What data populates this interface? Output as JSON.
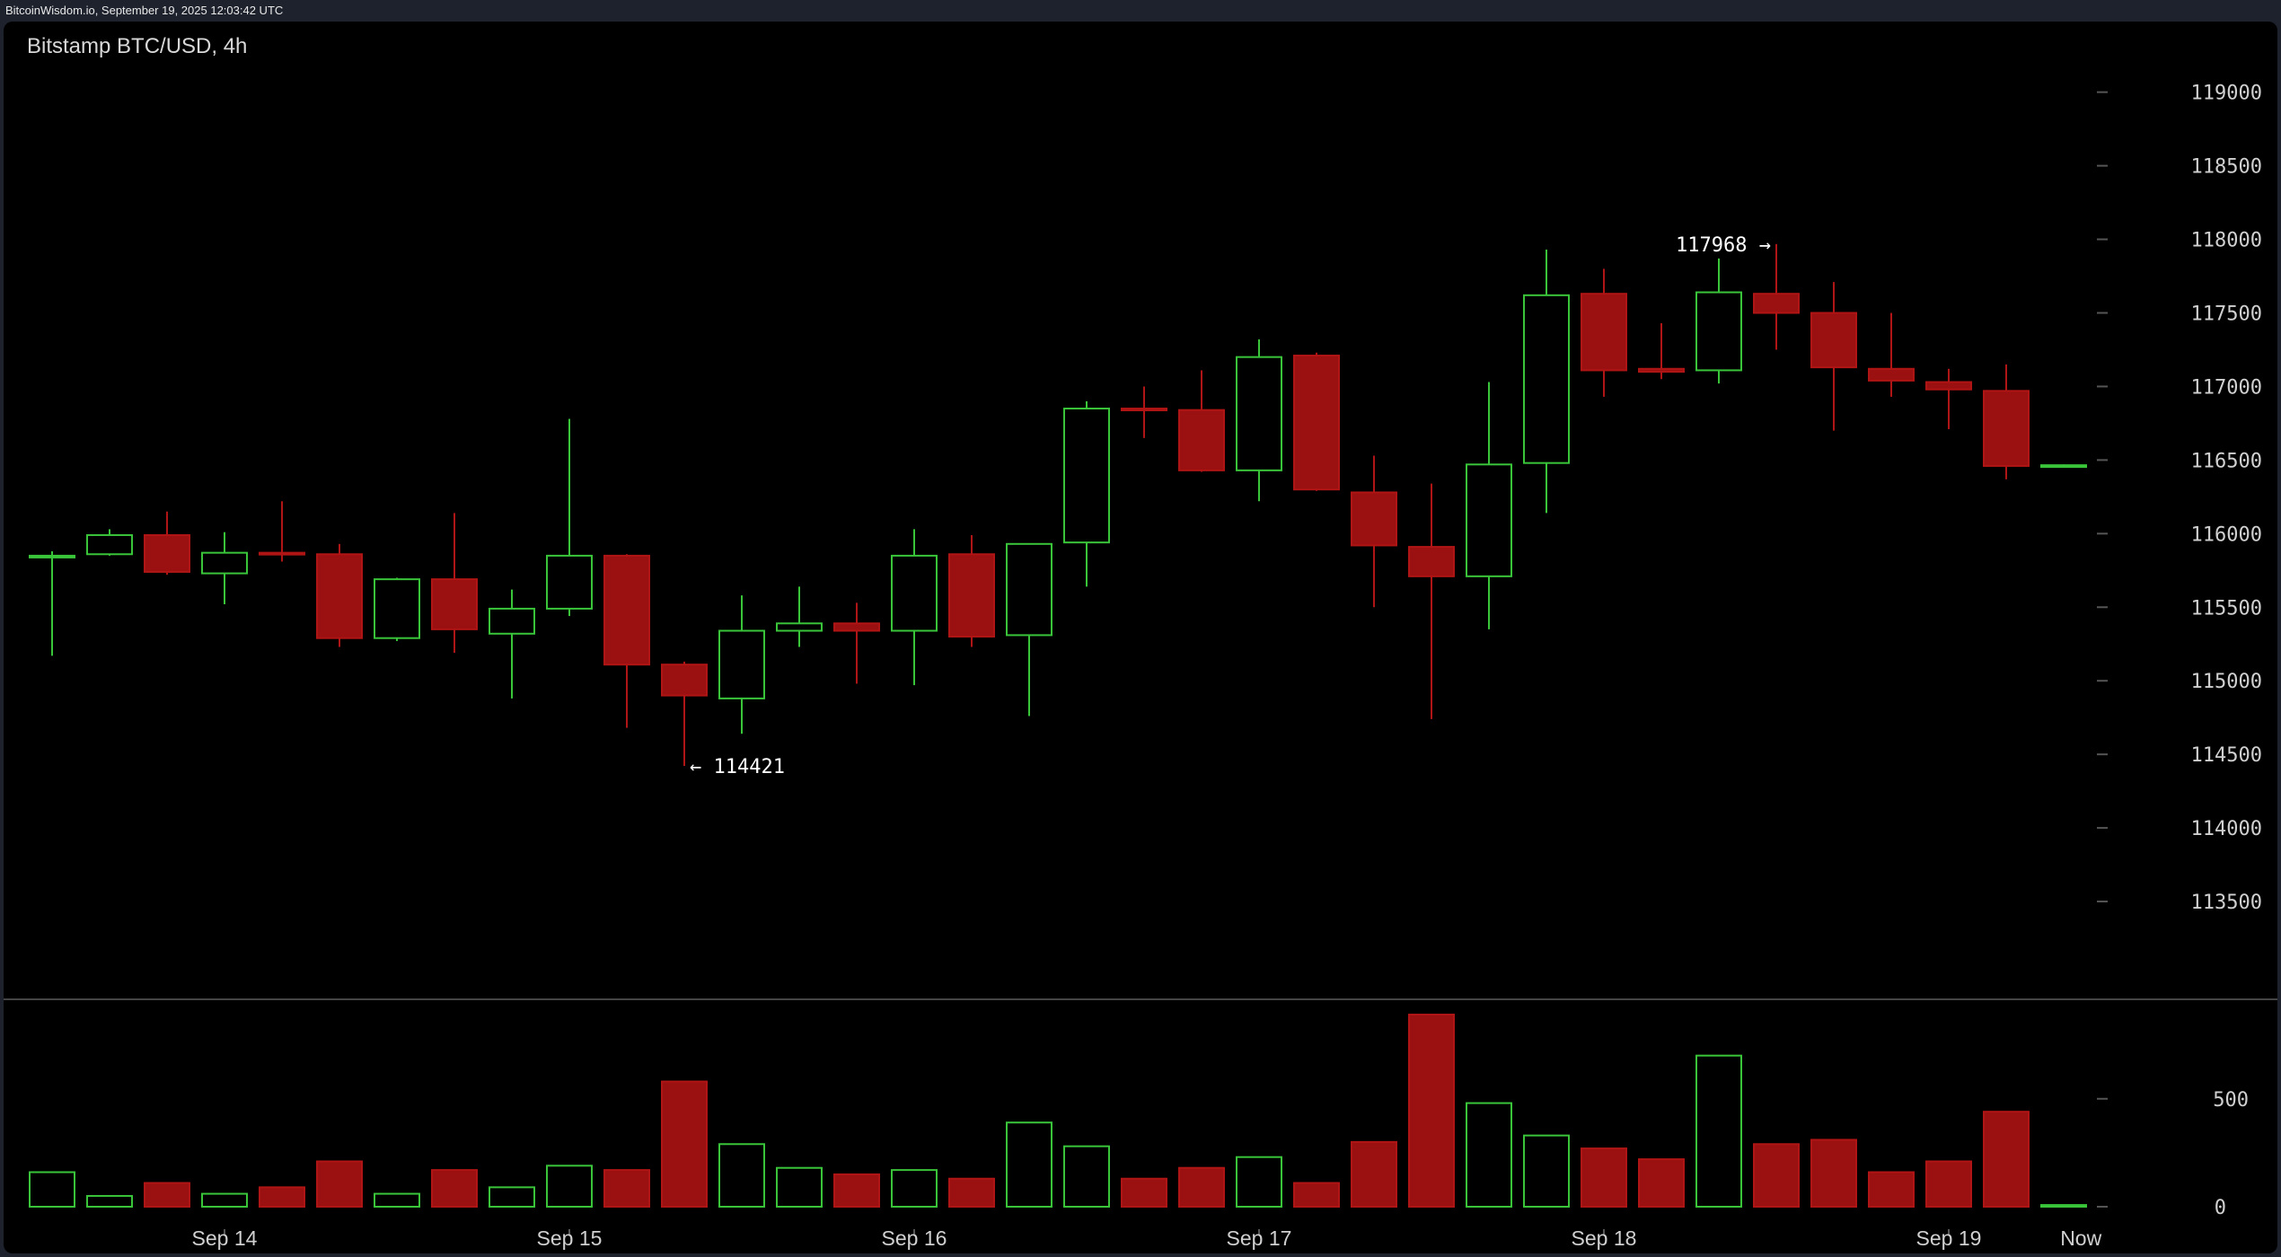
{
  "topbar": {
    "text": "BitcoinWisdom.io, September 19, 2025 12:03:42 UTC"
  },
  "colors": {
    "up": "#39c43a",
    "down": "#b01515",
    "down_fill": "#9b1010",
    "background": "#000000",
    "grid_tick": "#555555",
    "divider": "#444444"
  },
  "chart_data": {
    "type": "candlestick",
    "title": "Bitstamp BTC/USD, 4h",
    "price_ticks": [
      113500,
      114000,
      114500,
      115000,
      115500,
      116000,
      116500,
      117000,
      117500,
      118000,
      118500,
      119000
    ],
    "price_range": [
      113000,
      119480
    ],
    "volume_ticks": [
      0,
      500
    ],
    "volume_range": [
      0,
      890
    ],
    "x_labels": [
      {
        "label": "Sep 14",
        "index": 3
      },
      {
        "label": "Sep 15",
        "index": 9
      },
      {
        "label": "Sep 16",
        "index": 15
      },
      {
        "label": "Sep 17",
        "index": 21
      },
      {
        "label": "Sep 18",
        "index": 27
      },
      {
        "label": "Sep 19",
        "index": 33
      },
      {
        "label": "Now",
        "index": 35.3
      }
    ],
    "annotations": [
      {
        "text": "← 114421",
        "index": 11,
        "price": 114421,
        "side": "right"
      },
      {
        "text": "117968 →",
        "index": 30,
        "price": 117968,
        "side": "left"
      }
    ],
    "candles": [
      {
        "o": 115840,
        "h": 115880,
        "l": 115170,
        "c": 115850,
        "v": 160
      },
      {
        "o": 115860,
        "h": 116030,
        "l": 115850,
        "c": 115990,
        "v": 50
      },
      {
        "o": 115990,
        "h": 116150,
        "l": 115720,
        "c": 115740,
        "v": 110
      },
      {
        "o": 115730,
        "h": 116010,
        "l": 115520,
        "c": 115870,
        "v": 60
      },
      {
        "o": 115870,
        "h": 116220,
        "l": 115810,
        "c": 115860,
        "v": 90
      },
      {
        "o": 115860,
        "h": 115930,
        "l": 115230,
        "c": 115290,
        "v": 210
      },
      {
        "o": 115290,
        "h": 115700,
        "l": 115270,
        "c": 115690,
        "v": 60
      },
      {
        "o": 115690,
        "h": 116140,
        "l": 115190,
        "c": 115350,
        "v": 170
      },
      {
        "o": 115320,
        "h": 115620,
        "l": 114880,
        "c": 115490,
        "v": 90
      },
      {
        "o": 115490,
        "h": 116780,
        "l": 115440,
        "c": 115850,
        "v": 190
      },
      {
        "o": 115850,
        "h": 115860,
        "l": 114680,
        "c": 115110,
        "v": 170
      },
      {
        "o": 115110,
        "h": 115130,
        "l": 114421,
        "c": 114900,
        "v": 580
      },
      {
        "o": 114880,
        "h": 115580,
        "l": 114640,
        "c": 115340,
        "v": 290
      },
      {
        "o": 115340,
        "h": 115640,
        "l": 115230,
        "c": 115390,
        "v": 180
      },
      {
        "o": 115390,
        "h": 115530,
        "l": 114980,
        "c": 115340,
        "v": 150
      },
      {
        "o": 115340,
        "h": 116030,
        "l": 114970,
        "c": 115850,
        "v": 170
      },
      {
        "o": 115860,
        "h": 115990,
        "l": 115230,
        "c": 115300,
        "v": 130
      },
      {
        "o": 115310,
        "h": 115920,
        "l": 114760,
        "c": 115930,
        "v": 390
      },
      {
        "o": 115940,
        "h": 116900,
        "l": 115640,
        "c": 116850,
        "v": 280
      },
      {
        "o": 116850,
        "h": 117000,
        "l": 116650,
        "c": 116840,
        "v": 130
      },
      {
        "o": 116840,
        "h": 117110,
        "l": 116420,
        "c": 116430,
        "v": 180
      },
      {
        "o": 116430,
        "h": 117320,
        "l": 116220,
        "c": 117200,
        "v": 230
      },
      {
        "o": 117210,
        "h": 117230,
        "l": 116290,
        "c": 116300,
        "v": 110
      },
      {
        "o": 116280,
        "h": 116530,
        "l": 115500,
        "c": 115920,
        "v": 300
      },
      {
        "o": 115910,
        "h": 116340,
        "l": 114740,
        "c": 115710,
        "v": 890
      },
      {
        "o": 115710,
        "h": 117030,
        "l": 115350,
        "c": 116470,
        "v": 480
      },
      {
        "o": 116480,
        "h": 117930,
        "l": 116140,
        "c": 117620,
        "v": 330
      },
      {
        "o": 117630,
        "h": 117800,
        "l": 116930,
        "c": 117110,
        "v": 270
      },
      {
        "o": 117120,
        "h": 117430,
        "l": 117050,
        "c": 117100,
        "v": 220
      },
      {
        "o": 117110,
        "h": 117870,
        "l": 117020,
        "c": 117640,
        "v": 700
      },
      {
        "o": 117630,
        "h": 117968,
        "l": 117250,
        "c": 117500,
        "v": 290
      },
      {
        "o": 117500,
        "h": 117710,
        "l": 116700,
        "c": 117130,
        "v": 310
      },
      {
        "o": 117120,
        "h": 117500,
        "l": 116930,
        "c": 117040,
        "v": 160
      },
      {
        "o": 117030,
        "h": 117120,
        "l": 116710,
        "c": 116980,
        "v": 210
      },
      {
        "o": 116970,
        "h": 117150,
        "l": 116370,
        "c": 116460,
        "v": 440
      },
      {
        "o": 116460,
        "h": 116470,
        "l": 116450,
        "c": 116465,
        "v": 8
      }
    ]
  }
}
